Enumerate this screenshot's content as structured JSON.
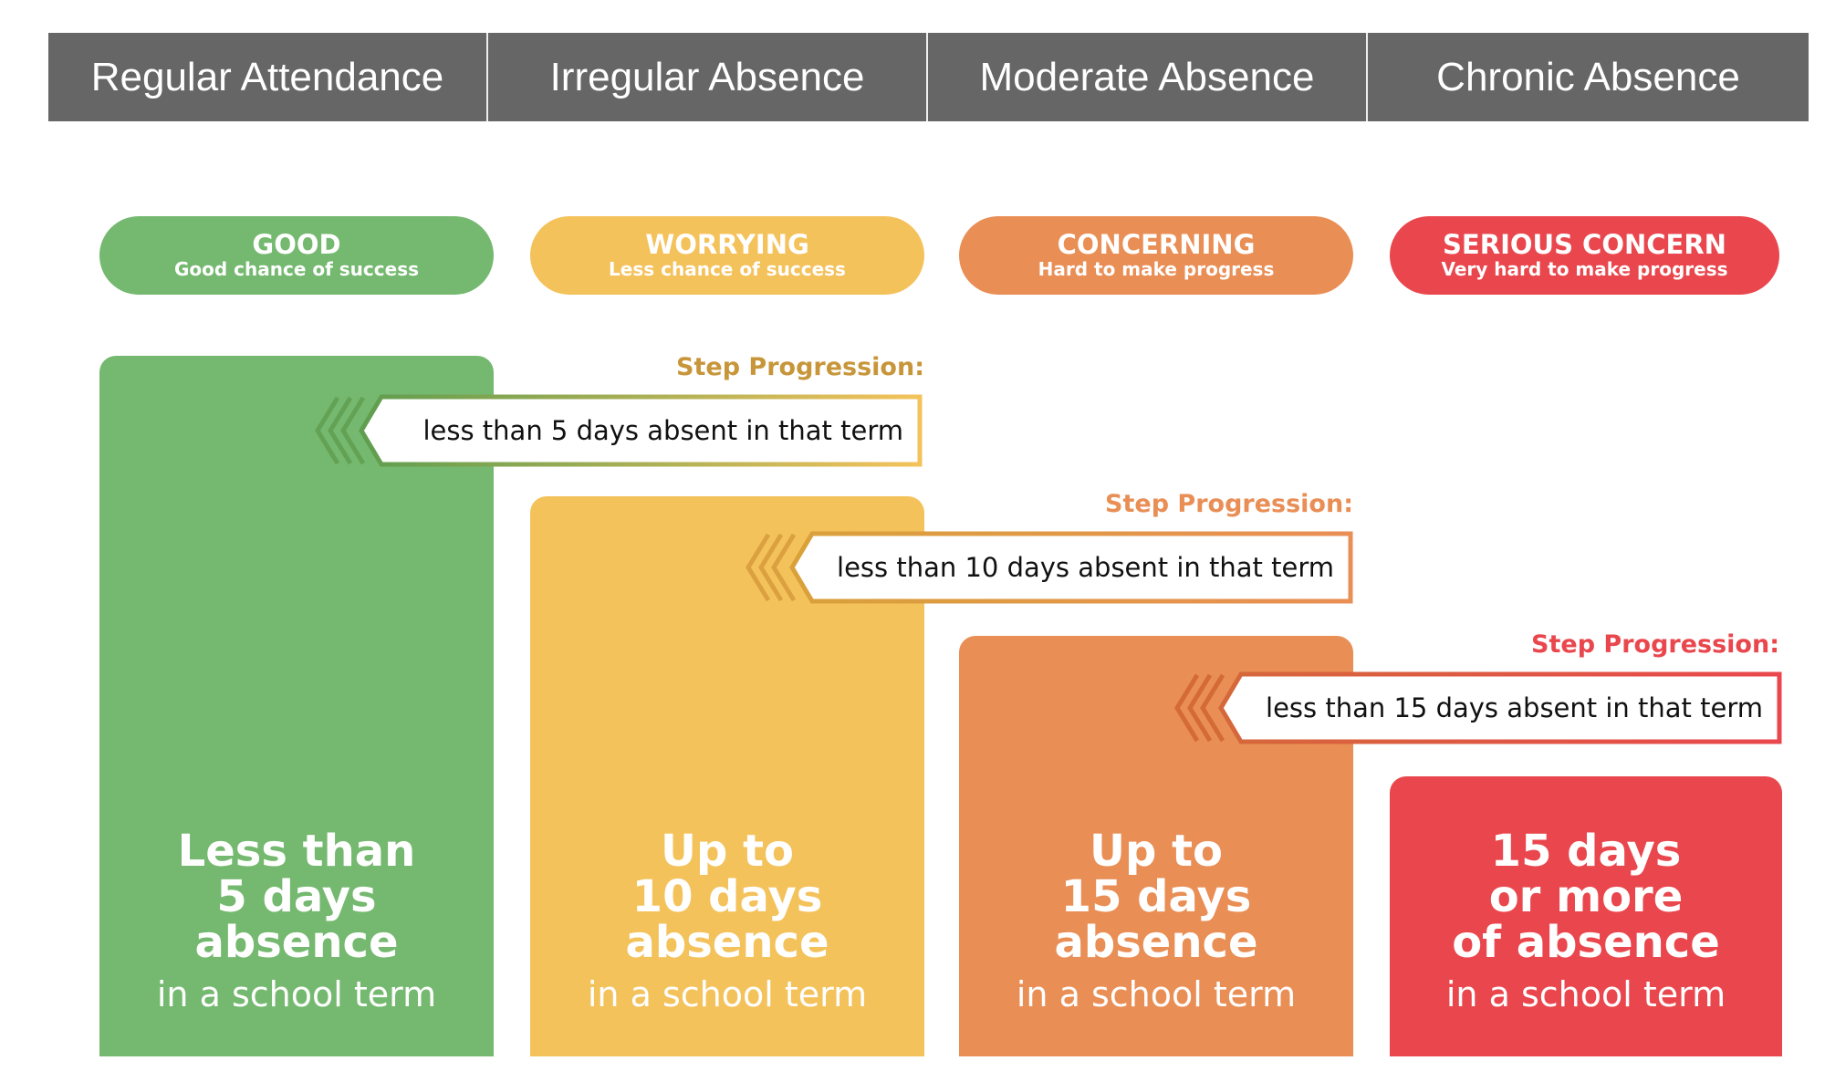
{
  "headers": [
    "Regular Attendance",
    "Irregular Absence",
    "Moderate Absence",
    "Chronic Absence"
  ],
  "colors": {
    "header": "#666666",
    "good": "#74b96f",
    "worrying": "#f4c25b",
    "concerning": "#e98e55",
    "serious": "#e9474d"
  },
  "pills": [
    {
      "title": "GOOD",
      "subtitle": "Good chance of success"
    },
    {
      "title": "WORRYING",
      "subtitle": "Less chance of success"
    },
    {
      "title": "CONCERNING",
      "subtitle": "Hard to make progress"
    },
    {
      "title": "SERIOUS CONCERN",
      "subtitle": "Very hard to make progress"
    }
  ],
  "boxes": [
    {
      "lines": [
        "Less than",
        "5 days",
        "absence"
      ],
      "sub": "in a school term"
    },
    {
      "lines": [
        "Up to",
        "10 days",
        "absence"
      ],
      "sub": "in a school term"
    },
    {
      "lines": [
        "Up to",
        "15 days",
        "absence"
      ],
      "sub": "in a school term"
    },
    {
      "lines": [
        "15 days",
        "or more",
        "of absence"
      ],
      "sub": "in a school term"
    }
  ],
  "steps": [
    {
      "label": "Step Progression:",
      "text": "less than 5 days absent in that term"
    },
    {
      "label": "Step Progression:",
      "text": "less than 10 days absent in that term"
    },
    {
      "label": "Step Progression:",
      "text": "less than 15 days absent in that term"
    }
  ]
}
